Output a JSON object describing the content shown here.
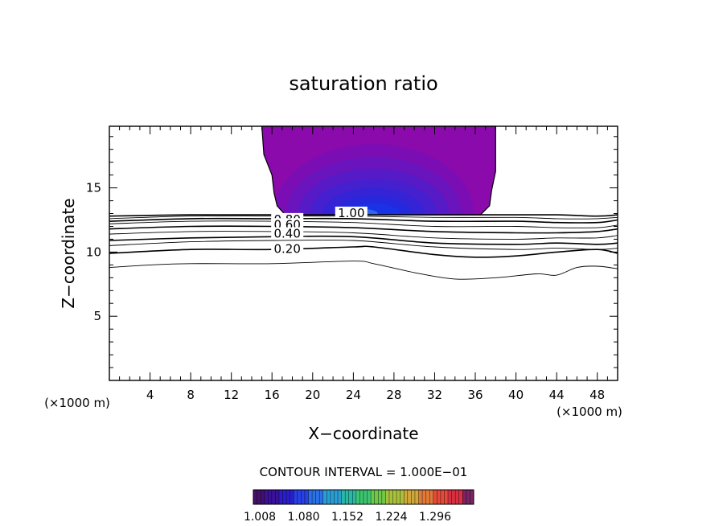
{
  "chart_data": {
    "type": "contour",
    "title": "saturation ratio",
    "xlabel": "X−coordinate",
    "ylabel": "Z−coordinate",
    "x_unit_left": "(×1000 m)",
    "x_unit_right": "(×1000 m)",
    "xlim": [
      0,
      50
    ],
    "ylim": [
      0,
      19.8
    ],
    "x_ticks": [
      4,
      8,
      12,
      16,
      20,
      24,
      28,
      32,
      36,
      40,
      44,
      48
    ],
    "y_ticks": [
      5,
      10,
      15
    ],
    "contour_interval_label": "CONTOUR INTERVAL = 1.000E−01",
    "contour_labels": [
      {
        "text": "1.00",
        "x": 23.8,
        "z": 13.1
      },
      {
        "text": "0.80",
        "x": 17.5,
        "z": 12.6
      },
      {
        "text": "0.60",
        "x": 17.5,
        "z": 12.2
      },
      {
        "text": "0.40",
        "x": 17.5,
        "z": 11.5
      },
      {
        "text": "0.20",
        "x": 17.5,
        "z": 10.3
      }
    ],
    "contour_lines": [
      {
        "level": 1.0,
        "points": [
          [
            0,
            12.8
          ],
          [
            8,
            12.9
          ],
          [
            16,
            12.9
          ],
          [
            24,
            12.9
          ],
          [
            32,
            12.9
          ],
          [
            40,
            12.9
          ],
          [
            44,
            12.9
          ],
          [
            48,
            12.8
          ],
          [
            50,
            12.9
          ]
        ]
      },
      {
        "level": 0.9,
        "points": [
          [
            0,
            12.6
          ],
          [
            8,
            12.8
          ],
          [
            16,
            12.8
          ],
          [
            24,
            12.8
          ],
          [
            32,
            12.7
          ],
          [
            40,
            12.7
          ],
          [
            44,
            12.6
          ],
          [
            48,
            12.6
          ],
          [
            50,
            12.7
          ]
        ]
      },
      {
        "level": 0.8,
        "points": [
          [
            0,
            12.4
          ],
          [
            8,
            12.6
          ],
          [
            16,
            12.6
          ],
          [
            24,
            12.6
          ],
          [
            32,
            12.4
          ],
          [
            40,
            12.4
          ],
          [
            44,
            12.3
          ],
          [
            48,
            12.3
          ],
          [
            50,
            12.5
          ]
        ]
      },
      {
        "level": 0.7,
        "points": [
          [
            0,
            12.2
          ],
          [
            8,
            12.4
          ],
          [
            16,
            12.4
          ],
          [
            24,
            12.3
          ],
          [
            32,
            12.0
          ],
          [
            40,
            12.0
          ],
          [
            44,
            11.9
          ],
          [
            48,
            11.9
          ],
          [
            50,
            12.1
          ]
        ]
      },
      {
        "level": 0.6,
        "points": [
          [
            0,
            11.8
          ],
          [
            8,
            12.0
          ],
          [
            16,
            12.0
          ],
          [
            24,
            11.9
          ],
          [
            32,
            11.6
          ],
          [
            40,
            11.5
          ],
          [
            44,
            11.5
          ],
          [
            48,
            11.6
          ],
          [
            50,
            11.8
          ]
        ]
      },
      {
        "level": 0.5,
        "points": [
          [
            0,
            11.4
          ],
          [
            8,
            11.6
          ],
          [
            16,
            11.6
          ],
          [
            24,
            11.5
          ],
          [
            32,
            11.1
          ],
          [
            40,
            11.0
          ],
          [
            44,
            11.1
          ],
          [
            48,
            11.1
          ],
          [
            50,
            11.3
          ]
        ]
      },
      {
        "level": 0.4,
        "points": [
          [
            0,
            10.9
          ],
          [
            8,
            11.1
          ],
          [
            16,
            11.2
          ],
          [
            24,
            11.2
          ],
          [
            32,
            10.7
          ],
          [
            40,
            10.6
          ],
          [
            44,
            10.7
          ],
          [
            48,
            10.6
          ],
          [
            50,
            10.7
          ]
        ]
      },
      {
        "level": 0.3,
        "points": [
          [
            0,
            10.5
          ],
          [
            8,
            10.8
          ],
          [
            16,
            10.9
          ],
          [
            24,
            10.9
          ],
          [
            32,
            10.4
          ],
          [
            40,
            10.2
          ],
          [
            44,
            10.3
          ],
          [
            48,
            10.2
          ],
          [
            50,
            10.3
          ]
        ]
      },
      {
        "level": 0.2,
        "points": [
          [
            0,
            9.9
          ],
          [
            8,
            10.2
          ],
          [
            16,
            10.2
          ],
          [
            24,
            10.4
          ],
          [
            26,
            10.4
          ],
          [
            32,
            9.8
          ],
          [
            36,
            9.6
          ],
          [
            40,
            9.7
          ],
          [
            44,
            10.0
          ],
          [
            48,
            10.2
          ],
          [
            50,
            9.9
          ]
        ]
      },
      {
        "level": 0.1,
        "points": [
          [
            0,
            8.8
          ],
          [
            4,
            9.0
          ],
          [
            8,
            9.1
          ],
          [
            16,
            9.1
          ],
          [
            24,
            9.3
          ],
          [
            26,
            9.1
          ],
          [
            30,
            8.4
          ],
          [
            34,
            7.9
          ],
          [
            38,
            8.0
          ],
          [
            42,
            8.3
          ],
          [
            44,
            8.2
          ],
          [
            46,
            8.8
          ],
          [
            48,
            8.9
          ],
          [
            50,
            8.7
          ]
        ]
      }
    ],
    "shaded_region": {
      "levels": [
        1.008,
        1.08,
        1.152,
        1.224,
        1.296
      ],
      "outline": [
        [
          15.0,
          19.8
        ],
        [
          15.2,
          17.6
        ],
        [
          16.0,
          16.0
        ],
        [
          16.2,
          14.6
        ],
        [
          16.5,
          13.6
        ],
        [
          17.3,
          12.9
        ],
        [
          36.5,
          12.9
        ],
        [
          37.4,
          13.6
        ],
        [
          37.6,
          14.8
        ],
        [
          38.0,
          16.3
        ],
        [
          38.0,
          19.8
        ]
      ],
      "bands": [
        {
          "peak_x": 26,
          "peak_z": 13.0,
          "rx": 11.0,
          "rz_up": 6.5,
          "color": "#8a0aac"
        },
        {
          "peak_x": 26,
          "peak_z": 13.0,
          "rx": 9.8,
          "rz_up": 5.4,
          "color": "#7a0eb4"
        },
        {
          "peak_x": 26,
          "peak_z": 13.0,
          "rx": 8.6,
          "rz_up": 4.4,
          "color": "#6914bc"
        },
        {
          "peak_x": 26,
          "peak_z": 13.0,
          "rx": 7.4,
          "rz_up": 3.5,
          "color": "#561ac6"
        },
        {
          "peak_x": 26,
          "peak_z": 13.0,
          "rx": 6.2,
          "rz_up": 2.7,
          "color": "#4420cf"
        },
        {
          "peak_x": 26,
          "peak_z": 13.0,
          "rx": 5.0,
          "rz_up": 2.0,
          "color": "#3424d6"
        },
        {
          "peak_x": 26,
          "peak_z": 13.0,
          "rx": 3.8,
          "rz_up": 1.35,
          "color": "#2528dc"
        },
        {
          "peak_x": 26,
          "peak_z": 13.0,
          "rx": 2.6,
          "rz_up": 0.8,
          "color": "#1a32e6"
        },
        {
          "peak_x": 25,
          "peak_z": 13.0,
          "rx": 1.4,
          "rz_up": 0.35,
          "color": "#2f66ef"
        }
      ]
    },
    "colorbar": {
      "tick_labels": [
        "1.008",
        "1.080",
        "1.152",
        "1.224",
        "1.296"
      ],
      "colors": [
        "#44106a",
        "#3a129a",
        "#2a1ecc",
        "#2840e6",
        "#2a70e6",
        "#2a9ed2",
        "#2ab8a6",
        "#3cc470",
        "#6ec84a",
        "#a8c03c",
        "#d0a83a",
        "#e07a38",
        "#e44a3a",
        "#d83040",
        "#7a2464"
      ]
    }
  }
}
